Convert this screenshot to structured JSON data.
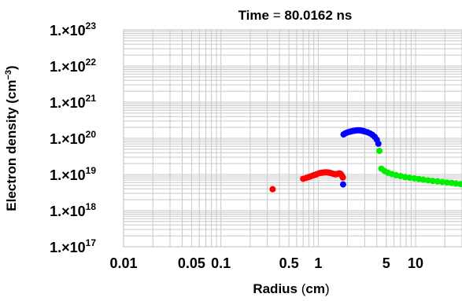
{
  "chart_data": {
    "type": "scatter",
    "title_prefix": "Time",
    "title_eq": " = ",
    "title_value": "80.0162",
    "title_unit": " ns",
    "xlabel": "Radius",
    "xunit": "cm",
    "ylabel": "Electron density",
    "yunit_base": "cm",
    "yunit_exp": "−3",
    "x_scale": "log",
    "y_scale": "log",
    "xlim": [
      0.01,
      30
    ],
    "ylim": [
      1e+17,
      1e+23
    ],
    "grid": true,
    "x_ticks": [
      {
        "value": 0.01,
        "label": "0.01"
      },
      {
        "value": 0.05,
        "label": "0.05"
      },
      {
        "value": 0.1,
        "label": "0.1"
      },
      {
        "value": 0.5,
        "label": "0.5"
      },
      {
        "value": 1,
        "label": "1"
      },
      {
        "value": 5,
        "label": "5"
      },
      {
        "value": 10,
        "label": "10"
      }
    ],
    "y_ticks": [
      {
        "value": 1e+23,
        "mant": "1.×10",
        "exp": "23"
      },
      {
        "value": 1e+22,
        "mant": "1.×10",
        "exp": "22"
      },
      {
        "value": 1e+21,
        "mant": "1.×10",
        "exp": "21"
      },
      {
        "value": 1e+20,
        "mant": "1.×10",
        "exp": "20"
      },
      {
        "value": 1e+19,
        "mant": "1.×10",
        "exp": "19"
      },
      {
        "value": 1e+18,
        "mant": "1.×10",
        "exp": "18"
      },
      {
        "value": 1e+17,
        "mant": "1.×10",
        "exp": "17"
      }
    ],
    "series": [
      {
        "color": "#ff0000",
        "points": [
          [
            0.34,
            3.9e+18
          ],
          [
            0.7,
            7.6e+18
          ],
          [
            0.75,
            8e+18
          ],
          [
            0.8,
            8.5e+18
          ],
          [
            0.85,
            9e+18
          ],
          [
            0.9,
            9.6e+18
          ],
          [
            0.95,
            1e+19
          ],
          [
            1.0,
            1.06e+19
          ],
          [
            1.05,
            1.1e+19
          ],
          [
            1.1,
            1.12e+19
          ],
          [
            1.15,
            1.14e+19
          ],
          [
            1.2,
            1.15e+19
          ],
          [
            1.25,
            1.14e+19
          ],
          [
            1.3,
            1.12e+19
          ],
          [
            1.35,
            1.09e+19
          ],
          [
            1.4,
            1.06e+19
          ],
          [
            1.45,
            1.03e+19
          ],
          [
            1.5,
            1.01e+19
          ],
          [
            1.55,
            1.02e+19
          ],
          [
            1.6,
            1.05e+19
          ],
          [
            1.65,
            1.07e+19
          ],
          [
            1.7,
            1.04e+19
          ],
          [
            1.75,
            9.3e+18
          ],
          [
            1.79,
            8.2e+18
          ]
        ]
      },
      {
        "color": "#0000ff",
        "points": [
          [
            1.8,
            5.3e+18
          ],
          [
            1.82,
            1.28e+20
          ],
          [
            1.9,
            1.38e+20
          ],
          [
            2.0,
            1.46e+20
          ],
          [
            2.1,
            1.52e+20
          ],
          [
            2.2,
            1.57e+20
          ],
          [
            2.3,
            1.61e+20
          ],
          [
            2.4,
            1.64e+20
          ],
          [
            2.5,
            1.66e+20
          ],
          [
            2.6,
            1.67e+20
          ],
          [
            2.7,
            1.66e+20
          ],
          [
            2.8,
            1.63e+20
          ],
          [
            2.9,
            1.6e+20
          ],
          [
            3.0,
            1.55e+20
          ],
          [
            3.2,
            1.47e+20
          ],
          [
            3.4,
            1.37e+20
          ],
          [
            3.6,
            1.25e+20
          ],
          [
            3.8,
            1.1e+20
          ],
          [
            4.0,
            9.2e+19
          ],
          [
            4.15,
            7.1e+19
          ]
        ]
      },
      {
        "color": "#00ee00",
        "points": [
          [
            4.25,
            4.5e+19
          ],
          [
            4.45,
            1.45e+19
          ],
          [
            4.8,
            1.25e+19
          ],
          [
            5.2,
            1.12e+19
          ],
          [
            5.7,
            1.03e+19
          ],
          [
            6.3,
            9.6e+18
          ],
          [
            7.0,
            9e+18
          ],
          [
            7.8,
            8.5e+18
          ],
          [
            8.7,
            8.1e+18
          ],
          [
            9.7,
            7.8e+18
          ],
          [
            10.8,
            7.5e+18
          ],
          [
            12.0,
            7.2e+18
          ],
          [
            13.4,
            6.9e+18
          ],
          [
            15.0,
            6.6e+18
          ],
          [
            16.8,
            6.4e+18
          ],
          [
            18.8,
            6.2e+18
          ],
          [
            21.0,
            6e+18
          ],
          [
            23.5,
            5.8e+18
          ],
          [
            26.0,
            5.6e+18
          ],
          [
            29.0,
            5.4e+18
          ]
        ]
      }
    ]
  }
}
